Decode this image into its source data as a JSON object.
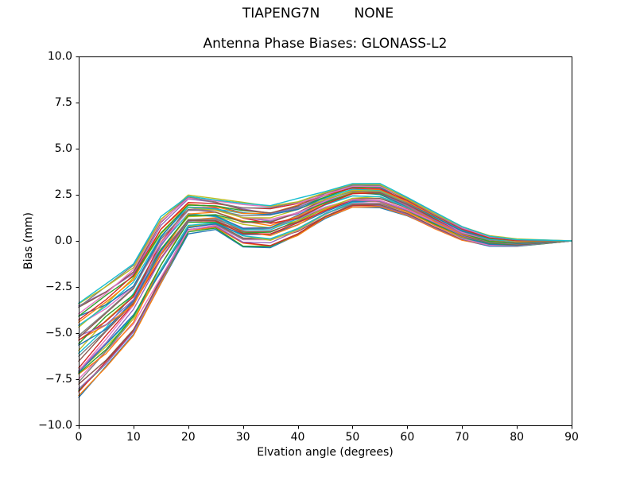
{
  "figure": {
    "suptitle": "TIAPENG7N        NONE",
    "title": "Antenna Phase Biases: GLONASS-L2",
    "xlabel": "Elvation angle (degrees)",
    "ylabel": "Bias (mm)"
  },
  "chart_data": {
    "type": "line",
    "suptitle": "TIAPENG7N        NONE",
    "title": "Antenna Phase Biases: GLONASS-L2",
    "xlabel": "Elvation angle (degrees)",
    "ylabel": "Bias (mm)",
    "xlim": [
      0,
      90
    ],
    "ylim": [
      -10.0,
      10.0
    ],
    "xticks": [
      0,
      10,
      20,
      30,
      40,
      50,
      60,
      70,
      80,
      90
    ],
    "yticks": [
      10.0,
      7.5,
      5.0,
      2.5,
      0.0,
      -2.5,
      -5.0,
      -7.5,
      -10.0
    ],
    "ytick_labels": [
      "10.0",
      "7.5",
      "5.0",
      "2.5",
      "0.0",
      "−2.5",
      "−5.0",
      "−7.5",
      "−10.0"
    ],
    "grid": false,
    "legend": "none",
    "x": [
      0,
      5,
      10,
      15,
      20,
      25,
      30,
      35,
      40,
      45,
      50,
      55,
      60,
      65,
      70,
      75,
      80,
      85,
      90
    ],
    "envelope_mid": [
      -5.9,
      -4.65,
      -3.2,
      -0.55,
      1.45,
      1.45,
      0.9,
      0.8,
      1.25,
      1.95,
      2.48,
      2.45,
      1.85,
      1.1,
      0.4,
      0.0,
      -0.1,
      -0.05,
      0.0
    ],
    "envelope_halfwidth": [
      2.7,
      2.35,
      2.0,
      1.95,
      1.12,
      0.85,
      1.15,
      1.1,
      0.95,
      0.75,
      0.68,
      0.65,
      0.5,
      0.45,
      0.4,
      0.3,
      0.2,
      0.1,
      0.0
    ],
    "num_lines": 40,
    "line_colors": [
      "#1f77b4",
      "#ff7f0e",
      "#2ca02c",
      "#d62728",
      "#9467bd",
      "#8c564b",
      "#e377c2",
      "#7f7f7f",
      "#bcbd22",
      "#17becf"
    ]
  },
  "style": {
    "axis_color": "#000000",
    "background": "#ffffff"
  }
}
